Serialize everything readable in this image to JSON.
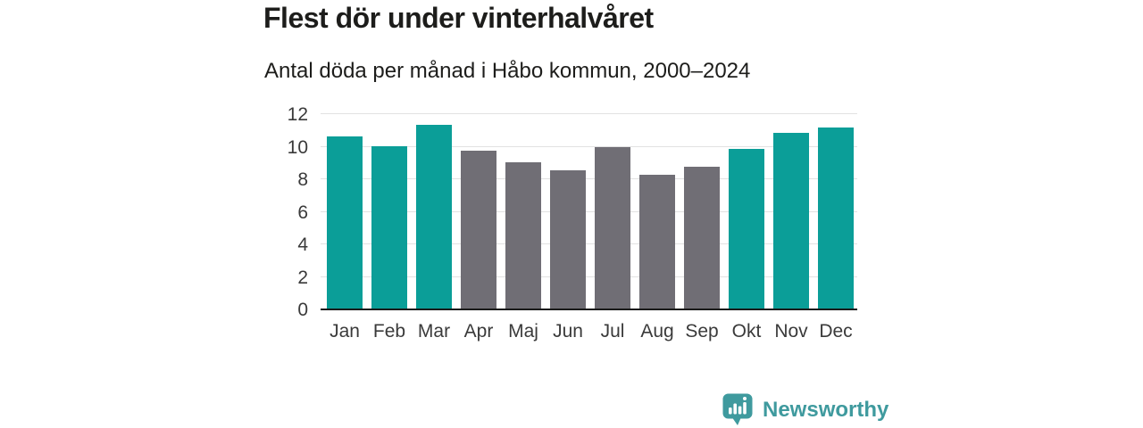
{
  "header": {
    "title": "Flest dör under vinterhalvåret",
    "subtitle": "Antal döda per månad i Håbo kommun, 2000–2024"
  },
  "chart_data": {
    "type": "bar",
    "title": "Flest dör under vinterhalvåret",
    "subtitle": "Antal döda per månad i Håbo kommun, 2000–2024",
    "categories": [
      "Jan",
      "Feb",
      "Mar",
      "Apr",
      "Maj",
      "Jun",
      "Jul",
      "Aug",
      "Sep",
      "Okt",
      "Nov",
      "Dec"
    ],
    "values": [
      10.6,
      10.0,
      11.3,
      9.7,
      9.0,
      8.5,
      9.9,
      8.2,
      8.7,
      9.8,
      10.8,
      11.1
    ],
    "highlighted_categories": [
      "Jan",
      "Feb",
      "Mar",
      "Okt",
      "Nov",
      "Dec"
    ],
    "colors": {
      "highlight": "#0b9e98",
      "default": "#706e75",
      "gridline": "#e2e2e2",
      "axis": "#1a1a1a",
      "tick_text": "#3a3a3a"
    },
    "xlabel": "",
    "ylabel": "",
    "ylim": [
      0,
      12
    ],
    "yticks": [
      0,
      2,
      4,
      6,
      8,
      10,
      12
    ],
    "grid": "horizontal",
    "legend": "none"
  },
  "footer": {
    "brand": "Newsworthy",
    "brand_color": "#3f9a9e",
    "logo_icon": "speech-bubble-bar-chart-icon"
  }
}
